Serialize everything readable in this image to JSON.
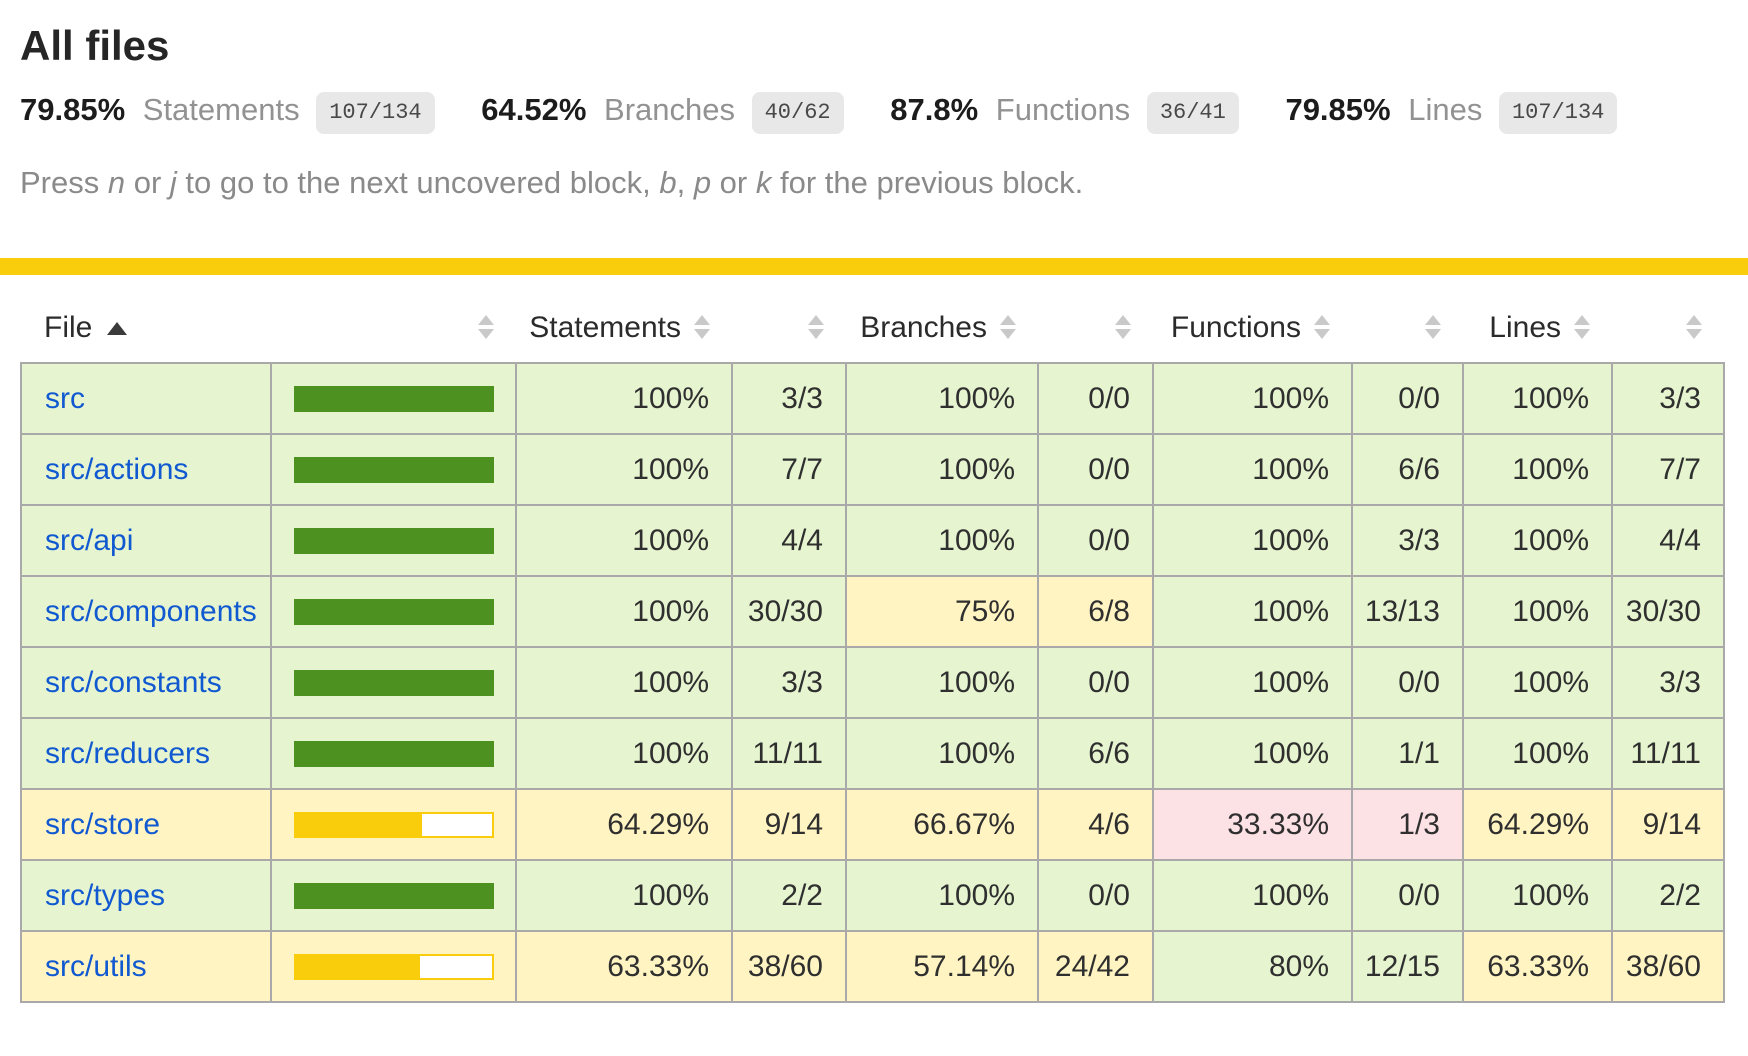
{
  "page": {
    "title": "All files"
  },
  "summary": {
    "metrics": [
      {
        "pct": "79.85%",
        "label": "Statements",
        "fraction": "107/134"
      },
      {
        "pct": "64.52%",
        "label": "Branches",
        "fraction": "40/62"
      },
      {
        "pct": "87.8%",
        "label": "Functions",
        "fraction": "36/41"
      },
      {
        "pct": "79.85%",
        "label": "Lines",
        "fraction": "107/134"
      }
    ]
  },
  "help": {
    "segments": [
      {
        "text": "Press "
      },
      {
        "text": "n",
        "em": true
      },
      {
        "text": " or "
      },
      {
        "text": "j",
        "em": true
      },
      {
        "text": " to go to the next uncovered block, "
      },
      {
        "text": "b",
        "em": true
      },
      {
        "text": ", "
      },
      {
        "text": "p",
        "em": true
      },
      {
        "text": " or "
      },
      {
        "text": "k",
        "em": true
      },
      {
        "text": " for the previous block."
      }
    ]
  },
  "colors": {
    "status_bar": "#F9CD0B",
    "high_bg": "#E6F5D0",
    "medium_bg": "#FFF4C2",
    "low_bg": "#FCE1E5",
    "bar_fill_high": "#4D9221",
    "bar_fill_medium": "#F9CD0B",
    "link": "#1159D0",
    "badge_bg": "#E8E8E8"
  },
  "table": {
    "sorted_by": "File",
    "sort_direction": "ascending",
    "columns": {
      "file": "File",
      "statements": "Statements",
      "branches": "Branches",
      "functions": "Functions",
      "lines": "Lines"
    },
    "rows": [
      {
        "file": "src",
        "file_level": "high",
        "bar_pct": 100,
        "statements": {
          "pct": "100%",
          "frac": "3/3",
          "level": "high"
        },
        "branches": {
          "pct": "100%",
          "frac": "0/0",
          "level": "high"
        },
        "functions": {
          "pct": "100%",
          "frac": "0/0",
          "level": "high"
        },
        "lines": {
          "pct": "100%",
          "frac": "3/3",
          "level": "high"
        }
      },
      {
        "file": "src/actions",
        "file_level": "high",
        "bar_pct": 100,
        "statements": {
          "pct": "100%",
          "frac": "7/7",
          "level": "high"
        },
        "branches": {
          "pct": "100%",
          "frac": "0/0",
          "level": "high"
        },
        "functions": {
          "pct": "100%",
          "frac": "6/6",
          "level": "high"
        },
        "lines": {
          "pct": "100%",
          "frac": "7/7",
          "level": "high"
        }
      },
      {
        "file": "src/api",
        "file_level": "high",
        "bar_pct": 100,
        "statements": {
          "pct": "100%",
          "frac": "4/4",
          "level": "high"
        },
        "branches": {
          "pct": "100%",
          "frac": "0/0",
          "level": "high"
        },
        "functions": {
          "pct": "100%",
          "frac": "3/3",
          "level": "high"
        },
        "lines": {
          "pct": "100%",
          "frac": "4/4",
          "level": "high"
        }
      },
      {
        "file": "src/components",
        "file_level": "high",
        "bar_pct": 100,
        "statements": {
          "pct": "100%",
          "frac": "30/30",
          "level": "high"
        },
        "branches": {
          "pct": "75%",
          "frac": "6/8",
          "level": "medium"
        },
        "functions": {
          "pct": "100%",
          "frac": "13/13",
          "level": "high"
        },
        "lines": {
          "pct": "100%",
          "frac": "30/30",
          "level": "high"
        }
      },
      {
        "file": "src/constants",
        "file_level": "high",
        "bar_pct": 100,
        "statements": {
          "pct": "100%",
          "frac": "3/3",
          "level": "high"
        },
        "branches": {
          "pct": "100%",
          "frac": "0/0",
          "level": "high"
        },
        "functions": {
          "pct": "100%",
          "frac": "0/0",
          "level": "high"
        },
        "lines": {
          "pct": "100%",
          "frac": "3/3",
          "level": "high"
        }
      },
      {
        "file": "src/reducers",
        "file_level": "high",
        "bar_pct": 100,
        "statements": {
          "pct": "100%",
          "frac": "11/11",
          "level": "high"
        },
        "branches": {
          "pct": "100%",
          "frac": "6/6",
          "level": "high"
        },
        "functions": {
          "pct": "100%",
          "frac": "1/1",
          "level": "high"
        },
        "lines": {
          "pct": "100%",
          "frac": "11/11",
          "level": "high"
        }
      },
      {
        "file": "src/store",
        "file_level": "medium",
        "bar_pct": 64.29,
        "statements": {
          "pct": "64.29%",
          "frac": "9/14",
          "level": "medium"
        },
        "branches": {
          "pct": "66.67%",
          "frac": "4/6",
          "level": "medium"
        },
        "functions": {
          "pct": "33.33%",
          "frac": "1/3",
          "level": "low"
        },
        "lines": {
          "pct": "64.29%",
          "frac": "9/14",
          "level": "medium"
        }
      },
      {
        "file": "src/types",
        "file_level": "high",
        "bar_pct": 100,
        "statements": {
          "pct": "100%",
          "frac": "2/2",
          "level": "high"
        },
        "branches": {
          "pct": "100%",
          "frac": "0/0",
          "level": "high"
        },
        "functions": {
          "pct": "100%",
          "frac": "0/0",
          "level": "high"
        },
        "lines": {
          "pct": "100%",
          "frac": "2/2",
          "level": "high"
        }
      },
      {
        "file": "src/utils",
        "file_level": "medium",
        "bar_pct": 63.33,
        "statements": {
          "pct": "63.33%",
          "frac": "38/60",
          "level": "medium"
        },
        "branches": {
          "pct": "57.14%",
          "frac": "24/42",
          "level": "medium"
        },
        "functions": {
          "pct": "80%",
          "frac": "12/15",
          "level": "high"
        },
        "lines": {
          "pct": "63.33%",
          "frac": "38/60",
          "level": "medium"
        }
      }
    ]
  }
}
